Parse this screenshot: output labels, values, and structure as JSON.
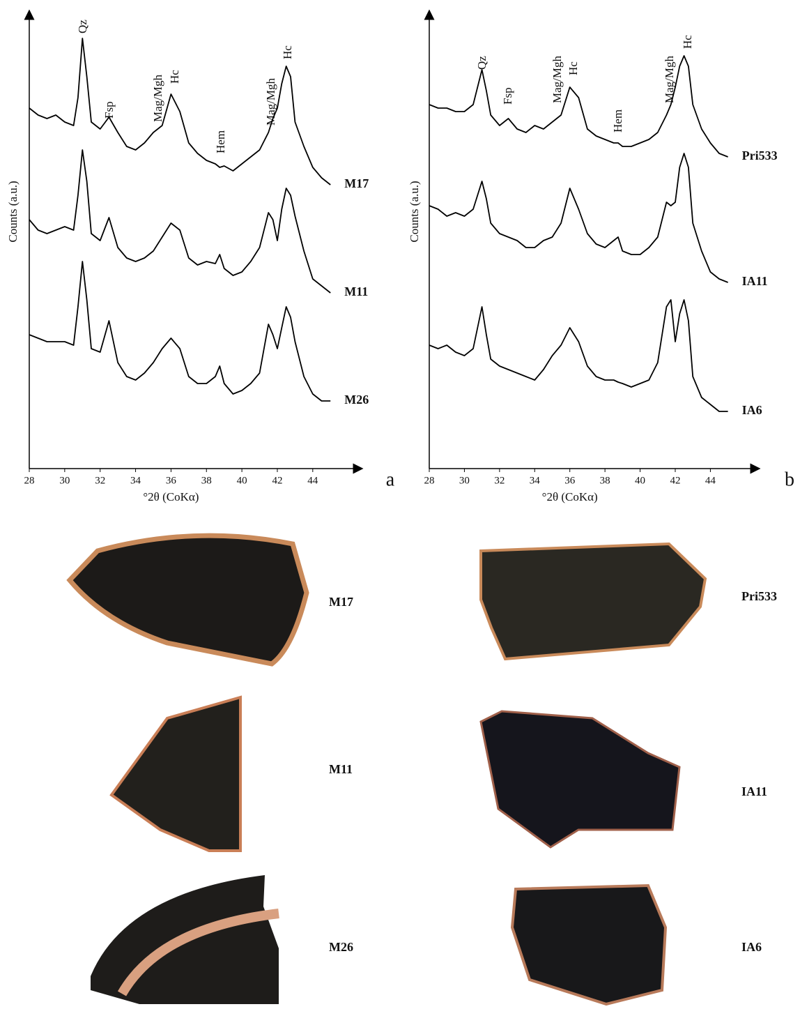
{
  "chart_data": [
    {
      "type": "line",
      "panel_label": "a",
      "xlabel": "°2θ (CoKα)",
      "ylabel": "Counts (a.u.)",
      "xlim": [
        28,
        46.8
      ],
      "ylim": [
        0,
        657
      ],
      "xticks": [
        28,
        30,
        32,
        34,
        36,
        38,
        40,
        42,
        44
      ],
      "annotations": [
        "Qz",
        "Fsp",
        "Mag/Mgh",
        "Hc",
        "Hem",
        "Mag/Mgh",
        "Hc"
      ],
      "x": [
        28,
        28.5,
        29,
        29.5,
        30,
        30.5,
        30.75,
        31,
        31.25,
        31.5,
        32,
        32.5,
        33,
        33.5,
        34,
        34.5,
        35,
        35.5,
        36,
        36.5,
        37,
        37.5,
        38,
        38.5,
        38.75,
        39,
        39.5,
        40,
        40.5,
        41,
        41.5,
        41.75,
        42,
        42.25,
        42.5,
        42.75,
        43,
        43.5,
        44,
        44.5,
        45
      ],
      "series": [
        {
          "name": "M17",
          "color": "#000000",
          "values": [
            517,
            507,
            502,
            507,
            497,
            492,
            532,
            617,
            562,
            497,
            487,
            504,
            482,
            462,
            457,
            467,
            482,
            492,
            537,
            512,
            467,
            452,
            442,
            437,
            432,
            434,
            427,
            437,
            447,
            457,
            482,
            502,
            517,
            552,
            577,
            562,
            497,
            462,
            432,
            417,
            407
          ]
        },
        {
          "name": "M11",
          "color": "#000000",
          "values": [
            357,
            342,
            337,
            342,
            347,
            342,
            392,
            457,
            412,
            337,
            327,
            360,
            317,
            302,
            297,
            302,
            312,
            332,
            352,
            342,
            302,
            292,
            297,
            294,
            307,
            287,
            277,
            282,
            297,
            317,
            367,
            357,
            327,
            372,
            402,
            392,
            362,
            312,
            272,
            262,
            252
          ]
        },
        {
          "name": "M26",
          "color": "#000000",
          "values": [
            192,
            187,
            182,
            182,
            182,
            177,
            232,
            297,
            242,
            172,
            167,
            212,
            152,
            132,
            127,
            137,
            152,
            172,
            187,
            172,
            132,
            122,
            122,
            132,
            147,
            122,
            107,
            112,
            122,
            137,
            207,
            192,
            172,
            202,
            232,
            217,
            182,
            132,
            107,
            97,
            97
          ]
        }
      ]
    },
    {
      "type": "line",
      "panel_label": "b",
      "xlabel": "°2θ (CoKα)",
      "ylabel": "Counts (a.u.)",
      "xlim": [
        28,
        46.8
      ],
      "ylim": [
        0,
        657
      ],
      "xticks": [
        28,
        30,
        32,
        34,
        36,
        38,
        40,
        42,
        44
      ],
      "annotations": [
        "Qz",
        "Fsp",
        "Mag/Mgh",
        "Hc",
        "Hem",
        "Mag/Mgh",
        "Hc"
      ],
      "x": [
        28,
        28.5,
        29,
        29.5,
        30,
        30.5,
        30.75,
        31,
        31.25,
        31.5,
        32,
        32.5,
        33,
        33.5,
        34,
        34.5,
        35,
        35.5,
        36,
        36.5,
        37,
        37.5,
        38,
        38.5,
        38.75,
        39,
        39.5,
        40,
        40.5,
        41,
        41.5,
        41.75,
        42,
        42.25,
        42.5,
        42.75,
        43,
        43.5,
        44,
        44.5,
        45
      ],
      "series": [
        {
          "name": "Pri533",
          "color": "#000000",
          "values": [
            522,
            517,
            517,
            512,
            512,
            522,
            547,
            572,
            542,
            507,
            492,
            502,
            487,
            482,
            492,
            487,
            497,
            507,
            547,
            532,
            487,
            477,
            472,
            467,
            467,
            462,
            462,
            467,
            472,
            482,
            507,
            522,
            547,
            577,
            592,
            577,
            522,
            487,
            467,
            452,
            447
          ]
        },
        {
          "name": "IA11",
          "color": "#000000",
          "values": [
            377,
            372,
            362,
            367,
            362,
            372,
            392,
            412,
            387,
            352,
            337,
            332,
            327,
            317,
            317,
            327,
            332,
            352,
            402,
            372,
            337,
            322,
            317,
            327,
            332,
            312,
            307,
            307,
            317,
            332,
            382,
            377,
            382,
            432,
            452,
            432,
            352,
            312,
            282,
            272,
            267
          ]
        },
        {
          "name": "IA6",
          "color": "#000000",
          "values": [
            177,
            172,
            177,
            167,
            162,
            172,
            202,
            232,
            192,
            157,
            147,
            142,
            137,
            132,
            127,
            142,
            162,
            177,
            202,
            182,
            147,
            132,
            127,
            127,
            124,
            122,
            117,
            122,
            127,
            152,
            232,
            242,
            182,
            222,
            242,
            212,
            132,
            102,
            92,
            82,
            82
          ]
        }
      ]
    }
  ],
  "photos": [
    {
      "label": "M17"
    },
    {
      "label": "M11"
    },
    {
      "label": "M26"
    },
    {
      "label": "Pri533"
    },
    {
      "label": "IA11"
    },
    {
      "label": "IA6"
    }
  ]
}
